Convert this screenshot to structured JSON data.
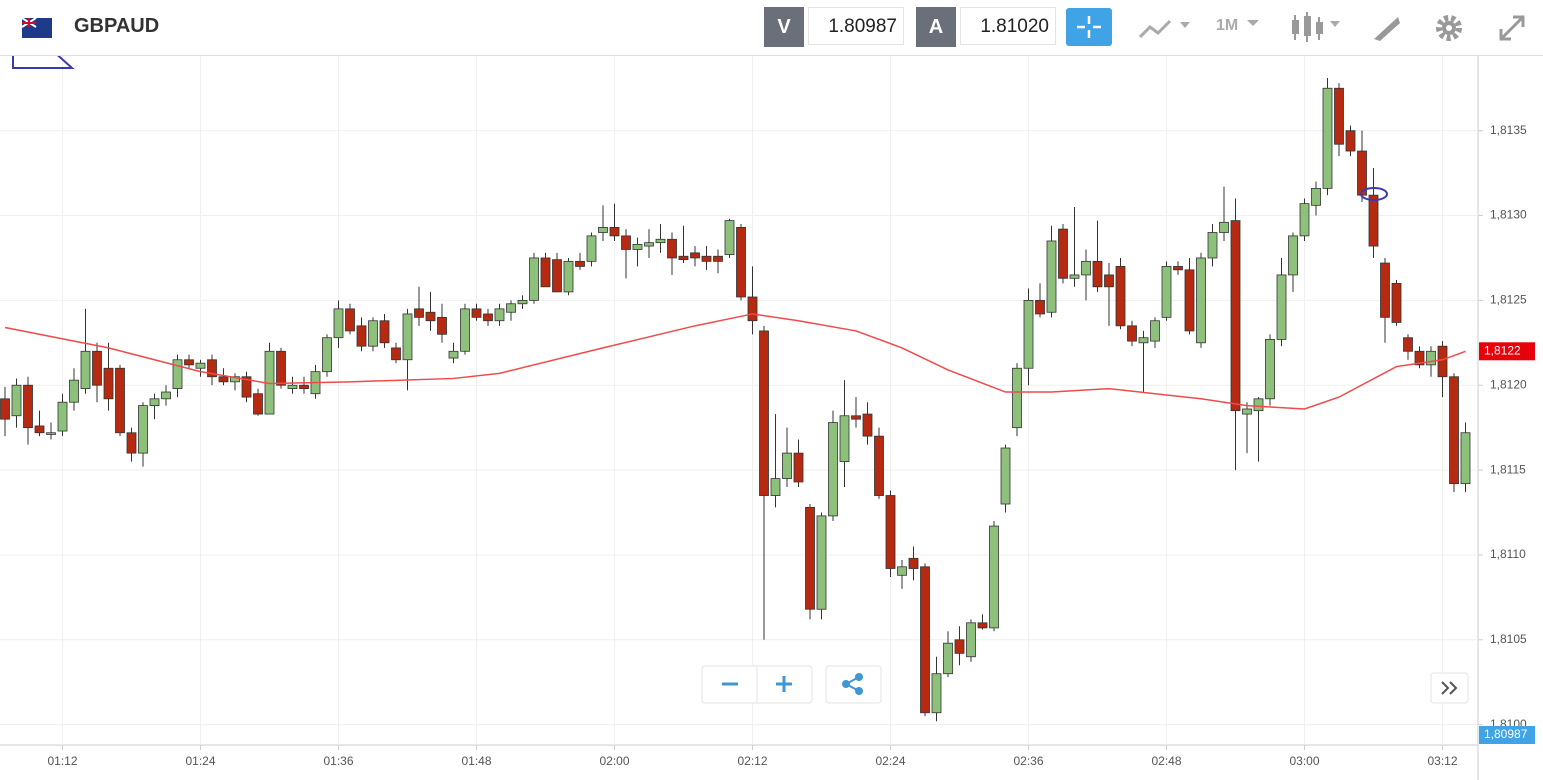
{
  "toolbar": {
    "symbol": "GBPAUD",
    "bid_key": "V",
    "bid": {
      "value": 1.80987,
      "label": "1.80987"
    },
    "ask_key": "A",
    "ask": {
      "value": 1.8102,
      "label": "1.81020"
    },
    "period": "1M"
  },
  "chart_data": {
    "type": "candlestick",
    "categories": [
      null,
      null,
      null,
      null,
      null,
      "01:12",
      null,
      null,
      null,
      null,
      null,
      null,
      null,
      null,
      null,
      null,
      null,
      "01:24",
      null,
      null,
      null,
      null,
      null,
      null,
      null,
      null,
      null,
      null,
      null,
      "01:36",
      null,
      null,
      null,
      null,
      null,
      null,
      null,
      null,
      null,
      null,
      null,
      "01:48",
      null,
      null,
      null,
      null,
      null,
      null,
      null,
      null,
      null,
      null,
      null,
      "02:00",
      null,
      null,
      null,
      null,
      null,
      null,
      null,
      null,
      null,
      null,
      null,
      "02:12",
      null,
      null,
      null,
      null,
      null,
      null,
      null,
      null,
      null,
      null,
      null,
      "02:24",
      null,
      null,
      null,
      null,
      null,
      null,
      null,
      null,
      null,
      null,
      null,
      "02:36",
      null,
      null,
      null,
      null,
      null,
      null,
      null,
      null,
      null,
      null,
      null,
      "02:48",
      null,
      null,
      null,
      null,
      null,
      null,
      null,
      null,
      null,
      null,
      null,
      "03:00",
      null,
      null,
      null,
      null,
      null,
      null,
      null,
      null,
      null,
      null,
      null,
      "03:12",
      null,
      null
    ],
    "candles": [
      [
        1.81192,
        1.81199,
        1.8117,
        1.8118
      ],
      [
        1.81182,
        1.81204,
        1.81175,
        1.812
      ],
      [
        1.812,
        1.81205,
        1.81165,
        1.81175
      ],
      [
        1.81176,
        1.81185,
        1.8117,
        1.81172
      ],
      [
        1.81171,
        1.81178,
        1.81168,
        1.81172
      ],
      [
        1.81173,
        1.81195,
        1.8117,
        1.8119
      ],
      [
        1.8119,
        1.8121,
        1.81185,
        1.81203
      ],
      [
        1.81198,
        1.81245,
        1.81195,
        1.8122
      ],
      [
        1.8122,
        1.81225,
        1.8119,
        1.812
      ],
      [
        1.8121,
        1.81225,
        1.81185,
        1.81192
      ],
      [
        1.8121,
        1.81212,
        1.8117,
        1.81172
      ],
      [
        1.81172,
        1.81175,
        1.81155,
        1.8116
      ],
      [
        1.8116,
        1.8119,
        1.81152,
        1.81188
      ],
      [
        1.81188,
        1.81195,
        1.8118,
        1.81192
      ],
      [
        1.81192,
        1.812,
        1.81188,
        1.81196
      ],
      [
        1.81198,
        1.81218,
        1.81193,
        1.81215
      ],
      [
        1.81215,
        1.81218,
        1.8121,
        1.81212
      ],
      [
        1.8121,
        1.81215,
        1.81205,
        1.81213
      ],
      [
        1.81215,
        1.81218,
        1.812,
        1.81205
      ],
      [
        1.81205,
        1.8121,
        1.812,
        1.81202
      ],
      [
        1.81202,
        1.81207,
        1.81197,
        1.81205
      ],
      [
        1.81205,
        1.81208,
        1.8119,
        1.81193
      ],
      [
        1.81195,
        1.81198,
        1.81182,
        1.81183
      ],
      [
        1.81183,
        1.81225,
        1.81183,
        1.8122
      ],
      [
        1.8122,
        1.81222,
        1.81198,
        1.812
      ],
      [
        1.81198,
        1.81205,
        1.81195,
        1.812
      ],
      [
        1.812,
        1.81205,
        1.81195,
        1.81198
      ],
      [
        1.81195,
        1.81212,
        1.81192,
        1.81208
      ],
      [
        1.81208,
        1.8123,
        1.81205,
        1.81228
      ],
      [
        1.81228,
        1.8125,
        1.81222,
        1.81245
      ],
      [
        1.81245,
        1.81248,
        1.8123,
        1.81232
      ],
      [
        1.81235,
        1.8124,
        1.8122,
        1.81223
      ],
      [
        1.81223,
        1.8124,
        1.8122,
        1.81238
      ],
      [
        1.81238,
        1.81242,
        1.81222,
        1.81225
      ],
      [
        1.81222,
        1.81225,
        1.81213,
        1.81215
      ],
      [
        1.81215,
        1.81245,
        1.81197,
        1.81242
      ],
      [
        1.81245,
        1.81258,
        1.81235,
        1.8124
      ],
      [
        1.81243,
        1.81255,
        1.81232,
        1.81238
      ],
      [
        1.8124,
        1.81248,
        1.81225,
        1.8123
      ],
      [
        1.81216,
        1.81225,
        1.81213,
        1.8122
      ],
      [
        1.8122,
        1.81248,
        1.81218,
        1.81245
      ],
      [
        1.81245,
        1.81248,
        1.81238,
        1.8124
      ],
      [
        1.81242,
        1.81245,
        1.81235,
        1.81238
      ],
      [
        1.81238,
        1.81248,
        1.81235,
        1.81245
      ],
      [
        1.81243,
        1.8125,
        1.81238,
        1.81248
      ],
      [
        1.81248,
        1.81253,
        1.81245,
        1.8125
      ],
      [
        1.8125,
        1.81278,
        1.81248,
        1.81275
      ],
      [
        1.81275,
        1.81278,
        1.81258,
        1.81258
      ],
      [
        1.81274,
        1.81278,
        1.81255,
        1.81255
      ],
      [
        1.81255,
        1.81275,
        1.81253,
        1.81273
      ],
      [
        1.81273,
        1.81278,
        1.81268,
        1.8127
      ],
      [
        1.81273,
        1.8129,
        1.8127,
        1.81288
      ],
      [
        1.8129,
        1.81306,
        1.81285,
        1.81293
      ],
      [
        1.81293,
        1.81307,
        1.81285,
        1.81288
      ],
      [
        1.81288,
        1.81292,
        1.81263,
        1.8128
      ],
      [
        1.8128,
        1.81287,
        1.8127,
        1.81283
      ],
      [
        1.81282,
        1.81292,
        1.81275,
        1.81284
      ],
      [
        1.81284,
        1.81295,
        1.81278,
        1.81286
      ],
      [
        1.81286,
        1.8129,
        1.81265,
        1.81275
      ],
      [
        1.81276,
        1.81294,
        1.81272,
        1.81274
      ],
      [
        1.81278,
        1.81282,
        1.8127,
        1.81275
      ],
      [
        1.81276,
        1.81282,
        1.81268,
        1.81273
      ],
      [
        1.81276,
        1.8128,
        1.81266,
        1.81273
      ],
      [
        1.81277,
        1.81298,
        1.81275,
        1.81297
      ],
      [
        1.81293,
        1.81295,
        1.8125,
        1.81252
      ],
      [
        1.81252,
        1.8127,
        1.8123,
        1.81238
      ],
      [
        1.81232,
        1.81235,
        1.8105,
        1.81135
      ],
      [
        1.81135,
        1.81183,
        1.81128,
        1.81145
      ],
      [
        1.81145,
        1.81175,
        1.8114,
        1.8116
      ],
      [
        1.8116,
        1.81168,
        1.8114,
        1.81143
      ],
      [
        1.81128,
        1.8113,
        1.81062,
        1.81068
      ],
      [
        1.81068,
        1.81125,
        1.81062,
        1.81123
      ],
      [
        1.81123,
        1.81185,
        1.8112,
        1.81178
      ],
      [
        1.81155,
        1.81203,
        1.8114,
        1.81182
      ],
      [
        1.81182,
        1.81193,
        1.81175,
        1.8118
      ],
      [
        1.81183,
        1.8119,
        1.81165,
        1.8117
      ],
      [
        1.8117,
        1.81175,
        1.81133,
        1.81135
      ],
      [
        1.81135,
        1.81138,
        1.81087,
        1.81092
      ],
      [
        1.81088,
        1.81097,
        1.8108,
        1.81093
      ],
      [
        1.81098,
        1.81105,
        1.81085,
        1.81092
      ],
      [
        1.81093,
        1.81095,
        1.81005,
        1.81007
      ],
      [
        1.81007,
        1.8104,
        1.81002,
        1.8103
      ],
      [
        1.8103,
        1.81055,
        1.81028,
        1.81048
      ],
      [
        1.8105,
        1.81058,
        1.81035,
        1.81042
      ],
      [
        1.8104,
        1.81062,
        1.81037,
        1.8106
      ],
      [
        1.8106,
        1.81065,
        1.81056,
        1.81057
      ],
      [
        1.81057,
        1.8112,
        1.81055,
        1.81117
      ],
      [
        1.8113,
        1.81165,
        1.81125,
        1.81163
      ],
      [
        1.81175,
        1.81213,
        1.8117,
        1.8121
      ],
      [
        1.8121,
        1.81257,
        1.812,
        1.8125
      ],
      [
        1.8125,
        1.8126,
        1.8124,
        1.81242
      ],
      [
        1.81243,
        1.81294,
        1.8124,
        1.81285
      ],
      [
        1.81292,
        1.81295,
        1.8126,
        1.81263
      ],
      [
        1.81263,
        1.81305,
        1.81258,
        1.81265
      ],
      [
        1.81265,
        1.8128,
        1.8125,
        1.81273
      ],
      [
        1.81273,
        1.81297,
        1.81255,
        1.81258
      ],
      [
        1.81265,
        1.81272,
        1.81235,
        1.81258
      ],
      [
        1.8127,
        1.81275,
        1.81233,
        1.81235
      ],
      [
        1.81235,
        1.81238,
        1.81223,
        1.81226
      ],
      [
        1.81225,
        1.81232,
        1.81196,
        1.81228
      ],
      [
        1.81226,
        1.8124,
        1.81222,
        1.81238
      ],
      [
        1.8124,
        1.81273,
        1.81238,
        1.8127
      ],
      [
        1.8127,
        1.81273,
        1.81265,
        1.81268
      ],
      [
        1.81268,
        1.81275,
        1.8123,
        1.81232
      ],
      [
        1.81225,
        1.81278,
        1.81222,
        1.81275
      ],
      [
        1.81275,
        1.81295,
        1.8127,
        1.8129
      ],
      [
        1.8129,
        1.81317,
        1.81285,
        1.81296
      ],
      [
        1.81297,
        1.8131,
        1.8115,
        1.81185
      ],
      [
        1.81183,
        1.8119,
        1.8116,
        1.81186
      ],
      [
        1.81185,
        1.81193,
        1.81155,
        1.81192
      ],
      [
        1.81192,
        1.8123,
        1.81188,
        1.81227
      ],
      [
        1.81227,
        1.81275,
        1.81223,
        1.81265
      ],
      [
        1.81265,
        1.8129,
        1.81255,
        1.81288
      ],
      [
        1.81288,
        1.8131,
        1.81285,
        1.81307
      ],
      [
        1.81306,
        1.8132,
        1.813,
        1.81316
      ],
      [
        1.81316,
        1.81381,
        1.81312,
        1.81375
      ],
      [
        1.81375,
        1.81378,
        1.81335,
        1.81342
      ],
      [
        1.8135,
        1.81353,
        1.81335,
        1.81338
      ],
      [
        1.81338,
        1.8135,
        1.81308,
        1.81312
      ],
      [
        1.81312,
        1.81328,
        1.81275,
        1.81282
      ],
      [
        1.81272,
        1.81275,
        1.81225,
        1.8124
      ],
      [
        1.8126,
        1.81262,
        1.81235,
        1.81237
      ],
      [
        1.81228,
        1.8123,
        1.81215,
        1.8122
      ],
      [
        1.8122,
        1.81223,
        1.8121,
        1.81212
      ],
      [
        1.81212,
        1.81223,
        1.81205,
        1.8122
      ],
      [
        1.81223,
        1.81226,
        1.81193,
        1.81205
      ],
      [
        1.81205,
        1.81207,
        1.81137,
        1.81142
      ],
      [
        1.81142,
        1.81178,
        1.81137,
        1.81172
      ]
    ],
    "up_color": "#8dc07a",
    "down_color": "#b52a10",
    "moving_average": {
      "color": "#f04a4a",
      "x": [
        0,
        9,
        17,
        23,
        30,
        39,
        43,
        52,
        60,
        65,
        69,
        74,
        78,
        82,
        87,
        91,
        96,
        100,
        104,
        108,
        113,
        116,
        121,
        125,
        127
      ],
      "values": [
        1.81234,
        1.81222,
        1.81208,
        1.81201,
        1.81202,
        1.81204,
        1.81207,
        1.81222,
        1.81235,
        1.81242,
        1.81238,
        1.81232,
        1.81222,
        1.81209,
        1.81196,
        1.81196,
        1.81198,
        1.81195,
        1.81192,
        1.81188,
        1.81186,
        1.81193,
        1.81211,
        1.81215,
        1.8122
      ]
    },
    "ma_tag": {
      "value": 1.8122,
      "label": "1,8122"
    },
    "price_tag": {
      "value": 1.80987,
      "label": "1,80987"
    },
    "ylim": [
      1.80988,
      1.81394
    ],
    "yticks": [
      {
        "value": 1.81,
        "label": "1,8100"
      },
      {
        "value": 1.8105,
        "label": "1,8105"
      },
      {
        "value": 1.811,
        "label": "1,8110"
      },
      {
        "value": 1.8115,
        "label": "1,8115"
      },
      {
        "value": 1.812,
        "label": "1,8120"
      },
      {
        "value": 1.8125,
        "label": "1,8125"
      },
      {
        "value": 1.813,
        "label": "1,8130"
      },
      {
        "value": 1.8135,
        "label": "1,8135"
      }
    ],
    "grid": true
  }
}
